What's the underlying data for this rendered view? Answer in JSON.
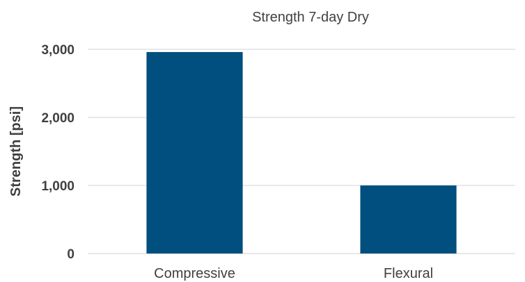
{
  "chart_data": {
    "type": "bar",
    "title": "Strength 7-day Dry",
    "xlabel": "",
    "ylabel": "Strength [psi]",
    "categories": [
      "Compressive",
      "Flexural"
    ],
    "values": [
      2960,
      1000
    ],
    "ylim": [
      0,
      3000
    ],
    "yticks": [
      0,
      1000,
      2000,
      3000
    ],
    "ytick_labels": [
      "0",
      "1,000",
      "2,000",
      "3,000"
    ],
    "grid": true,
    "legend": "none",
    "colors": {
      "bar": "#004f7f",
      "grid": "#d9d9d9",
      "text": "#404040"
    }
  }
}
